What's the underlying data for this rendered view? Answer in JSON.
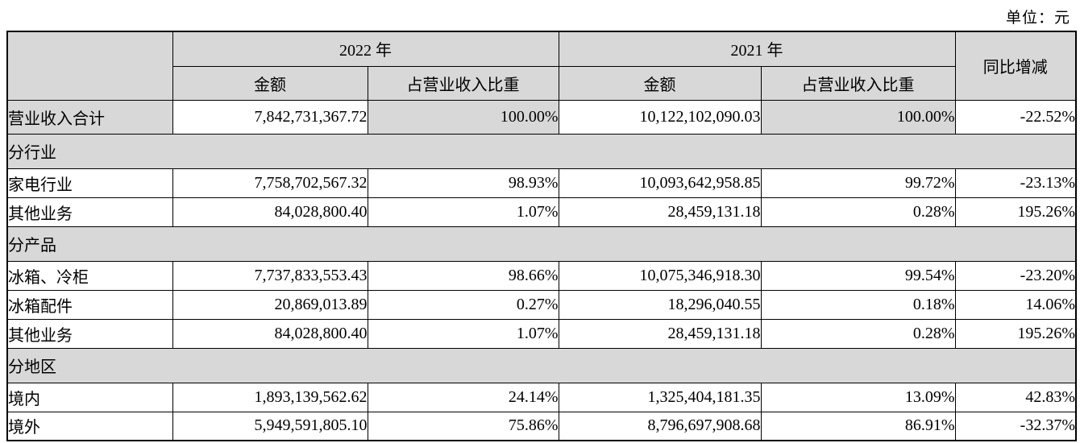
{
  "meta": {
    "unit_label": "单位：元"
  },
  "colors": {
    "header_bg": "#d8d8d8",
    "border": "#000000",
    "text": "#000000",
    "page_bg": "#ffffff"
  },
  "table": {
    "header": {
      "year_2022": "2022 年",
      "year_2021": "2021 年",
      "amount_2022": "金额",
      "ratio_2022": "占营业收入比重",
      "amount_2021": "金额",
      "ratio_2021": "占营业收入比重",
      "yoy": "同比增减"
    },
    "rows": [
      {
        "type": "data",
        "variant": "first",
        "label": "营业收入合计",
        "amount_2022": "7,842,731,367.72",
        "ratio_2022": "100.00%",
        "amount_2021": "10,122,102,090.03",
        "ratio_2021": "100.00%",
        "yoy": "-22.52%",
        "label_gray": true,
        "ratio_gray": true
      },
      {
        "type": "section",
        "label": "分行业"
      },
      {
        "type": "data",
        "label": "家电行业",
        "amount_2022": "7,758,702,567.32",
        "ratio_2022": "98.93%",
        "amount_2021": "10,093,642,958.85",
        "ratio_2021": "99.72%",
        "yoy": "-23.13%"
      },
      {
        "type": "data",
        "label": "其他业务",
        "amount_2022": "84,028,800.40",
        "ratio_2022": "1.07%",
        "amount_2021": "28,459,131.18",
        "ratio_2021": "0.28%",
        "yoy": "195.26%"
      },
      {
        "type": "section",
        "label": "分产品"
      },
      {
        "type": "data",
        "label": "冰箱、冷柜",
        "amount_2022": "7,737,833,553.43",
        "ratio_2022": "98.66%",
        "amount_2021": "10,075,346,918.30",
        "ratio_2021": "99.54%",
        "yoy": "-23.20%"
      },
      {
        "type": "data",
        "label": "冰箱配件",
        "amount_2022": "20,869,013.89",
        "ratio_2022": "0.27%",
        "amount_2021": "18,296,040.55",
        "ratio_2021": "0.18%",
        "yoy": "14.06%"
      },
      {
        "type": "data",
        "label": "其他业务",
        "amount_2022": "84,028,800.40",
        "ratio_2022": "1.07%",
        "amount_2021": "28,459,131.18",
        "ratio_2021": "0.28%",
        "yoy": "195.26%"
      },
      {
        "type": "section",
        "label": "分地区"
      },
      {
        "type": "data",
        "label": "境内",
        "amount_2022": "1,893,139,562.62",
        "ratio_2022": "24.14%",
        "amount_2021": "1,325,404,181.35",
        "ratio_2021": "13.09%",
        "yoy": "42.83%"
      },
      {
        "type": "data",
        "label": "境外",
        "amount_2022": "5,949,591,805.10",
        "ratio_2022": "75.86%",
        "amount_2021": "8,796,697,908.68",
        "ratio_2021": "86.91%",
        "yoy": "-32.37%"
      }
    ]
  }
}
